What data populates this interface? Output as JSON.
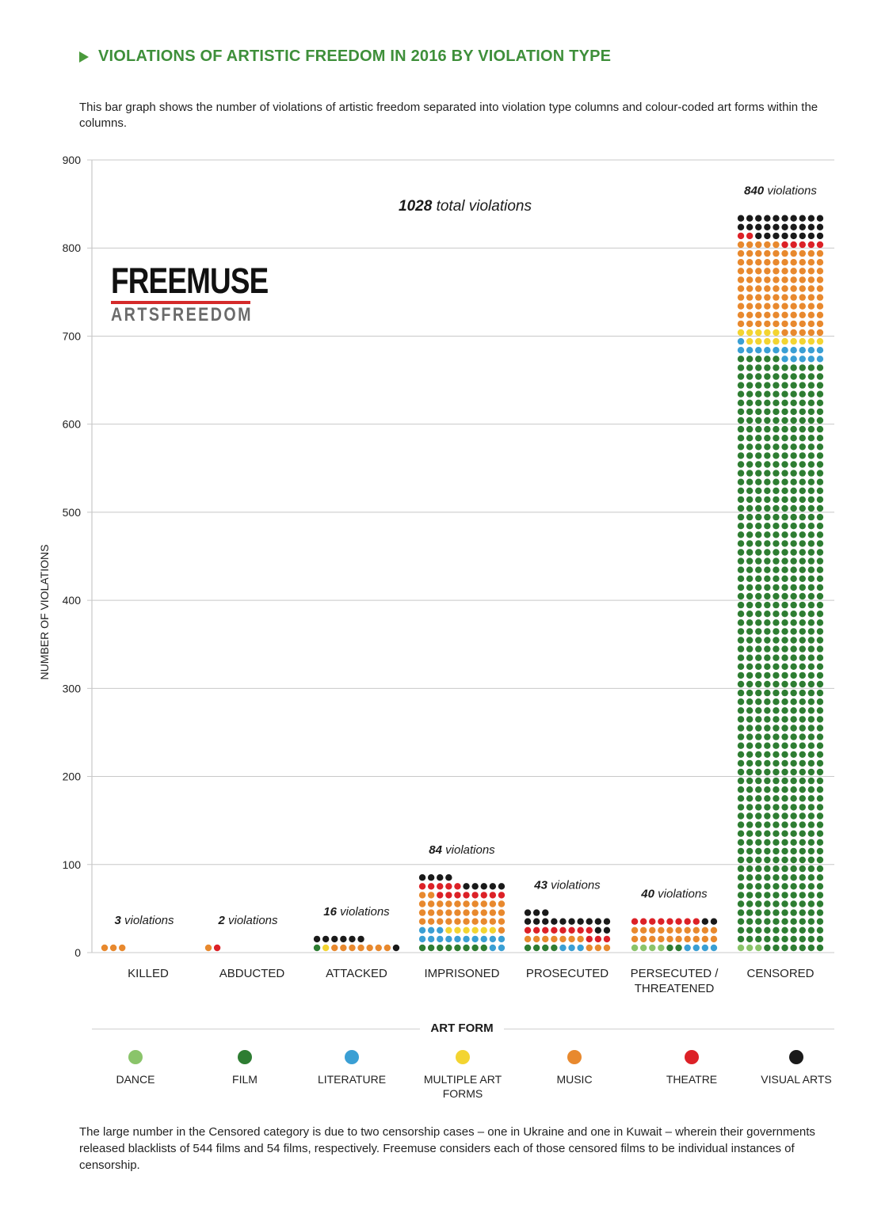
{
  "title": "VIOLATIONS OF ARTISTIC FREEDOM IN 2016 BY VIOLATION TYPE",
  "intro": "This bar graph shows the number of violations of artistic freedom separated into violation type columns and colour-coded art forms within the columns.",
  "logo": {
    "top": "FREEMUSE",
    "bottom": "ARTSFREEDOM"
  },
  "chart_data": {
    "type": "bar",
    "stacked": true,
    "title": "1028 total violations",
    "total_bold": "1028",
    "total_rest": " total violations",
    "ylabel": "NUMBER OF VIOLATIONS",
    "xlabel": "",
    "ylim": [
      0,
      900
    ],
    "yticks": [
      0,
      100,
      200,
      300,
      400,
      500,
      600,
      700,
      800,
      900
    ],
    "categories": [
      "KILLED",
      "ABDUCTED",
      "ATTACKED",
      "IMPRISONED",
      "PROSECUTED",
      "PERSECUTED / THREATENED",
      "CENSORED"
    ],
    "category_lines": [
      [
        "KILLED"
      ],
      [
        "ABDUCTED"
      ],
      [
        "ATTACKED"
      ],
      [
        "IMPRISONED"
      ],
      [
        "PROSECUTED"
      ],
      [
        "PERSECUTED /",
        "THREATENED"
      ],
      [
        "CENSORED"
      ]
    ],
    "totals": [
      3,
      2,
      16,
      84,
      43,
      40,
      840
    ],
    "total_suffix": " violations",
    "series": [
      {
        "name": "DANCE",
        "color": "#8ac46a",
        "values": [
          0,
          0,
          0,
          0,
          0,
          4,
          3
        ]
      },
      {
        "name": "FILM",
        "color": "#2e7d32",
        "values": [
          0,
          0,
          1,
          8,
          4,
          2,
          672
        ]
      },
      {
        "name": "LITERATURE",
        "color": "#3a9fd4",
        "values": [
          0,
          0,
          0,
          15,
          3,
          4,
          16
        ]
      },
      {
        "name": "MULTIPLE ART FORMS",
        "color": "#f3d431",
        "values": [
          0,
          0,
          1,
          6,
          0,
          0,
          14
        ]
      },
      {
        "name": "MUSIC",
        "color": "#e8892e",
        "values": [
          3,
          1,
          7,
          33,
          10,
          20,
          100
        ]
      },
      {
        "name": "THEATRE",
        "color": "#dc2127",
        "values": [
          0,
          1,
          0,
          13,
          11,
          8,
          7
        ]
      },
      {
        "name": "VISUAL ARTS",
        "color": "#1a1a1a",
        "values": [
          0,
          0,
          7,
          9,
          15,
          2,
          28
        ]
      }
    ]
  },
  "legend": {
    "title": "ART FORM",
    "items": [
      {
        "label": "DANCE",
        "color": "#8ac46a"
      },
      {
        "label": "FILM",
        "color": "#2e7d32"
      },
      {
        "label": "LITERATURE",
        "color": "#3a9fd4"
      },
      {
        "label": "MULTIPLE ART FORMS",
        "color": "#f3d431"
      },
      {
        "label": "MUSIC",
        "color": "#e8892e"
      },
      {
        "label": "THEATRE",
        "color": "#dc2127"
      },
      {
        "label": "VISUAL ARTS",
        "color": "#1a1a1a"
      }
    ]
  },
  "footnote": "The large number in the Censored category is due to two censorship cases – one in Ukraine and one in Kuwait – wherein their governments released blacklists of 544 films and 54 films, respectively. Freemuse considers each of those censored films to be individual instances of censorship."
}
